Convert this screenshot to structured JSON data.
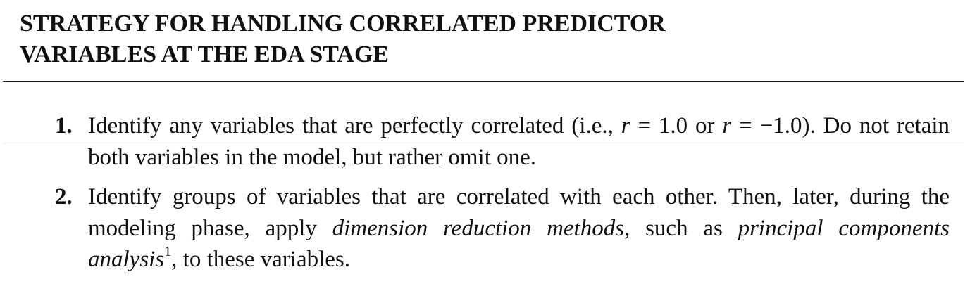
{
  "heading": {
    "line1": "STRATEGY FOR HANDLING CORRELATED PREDICTOR",
    "line2": "VARIABLES AT THE EDA STAGE"
  },
  "items": [
    {
      "number": "1.",
      "p1": "Identify any variables that are perfectly correlated (i.e., ",
      "var_r1": "r",
      "p2": " = 1.0 or ",
      "var_r2": "r",
      "p3": " = −1.0). Do not retain both variables in the model, but rather omit one."
    },
    {
      "number": "2.",
      "p1": "Identify groups of variables that are correlated with each other. Then, later, during the modeling phase, apply ",
      "em1": "dimension reduction methods",
      "p2": ", such as ",
      "em2": "principal components analysis",
      "footnote": "1",
      "p3": ", to these variables."
    }
  ]
}
